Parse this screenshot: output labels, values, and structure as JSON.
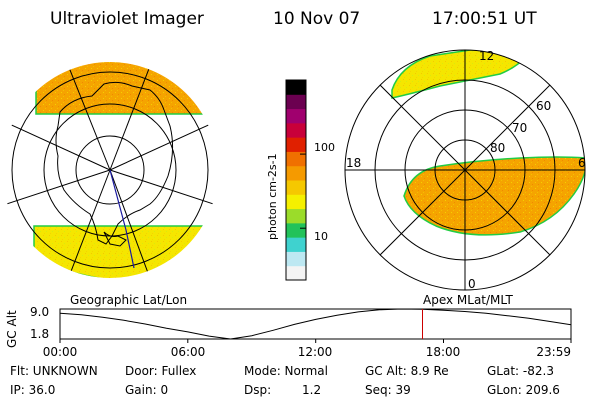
{
  "header": {
    "instrument": "Ultraviolet Imager",
    "date": "10 Nov 07",
    "time": "17:00:51 UT"
  },
  "panels": {
    "left_label": "Geographic Lat/Lon",
    "right_label": "Apex MLat/MLT"
  },
  "colorbar": {
    "unit_label": "photon cm-2s-1",
    "scale": "log",
    "tick_labels": [
      "100",
      "10"
    ],
    "tick_values": [
      100,
      10
    ],
    "range": [
      2,
      1000
    ],
    "colors": [
      "#f4f4f4",
      "#bde8f2",
      "#3fd2cf",
      "#22c25a",
      "#9bdc2a",
      "#f5f000",
      "#f5c800",
      "#f59a00",
      "#f07000",
      "#e02000",
      "#c8003a",
      "#a0006e",
      "#6b0050",
      "#000000"
    ]
  },
  "polar_labels": {
    "mlt_12": "12",
    "mlt_18": "18",
    "mlt_6": "6",
    "mlt_0": "0",
    "lat_60": "60",
    "lat_70": "70",
    "lat_80": "80"
  },
  "timeline": {
    "ylabel": "GC Alt",
    "yticks": [
      "9.0",
      "1.8"
    ],
    "xticks": [
      "00:00",
      "06:00",
      "12:00",
      "18:00",
      "23:59"
    ],
    "marker_time": "17:00:51"
  },
  "chart_data": {
    "type": "line",
    "title": "",
    "xlabel": "",
    "ylabel": "GC Alt",
    "xlim": [
      0,
      23.983
    ],
    "ylim": [
      1.8,
      9.0
    ],
    "x": [
      0,
      1,
      2,
      3,
      4,
      5,
      6,
      7,
      8,
      9,
      10,
      11,
      12,
      13,
      14,
      15,
      16,
      17,
      18,
      19,
      20,
      21,
      22,
      23,
      23.983
    ],
    "series": [
      {
        "values": [
          8.0,
          7.6,
          7.0,
          6.3,
          5.4,
          4.4,
          3.5,
          2.5,
          1.8,
          2.6,
          3.9,
          5.3,
          6.5,
          7.5,
          8.3,
          8.8,
          9.0,
          8.95,
          8.7,
          8.4,
          8.0,
          7.4,
          6.8,
          6.0,
          5.2
        ]
      }
    ],
    "marker_x": 17.014
  },
  "footer": {
    "flt": "Flt: UNKNOWN",
    "ip": "IP: 36.0",
    "door": "Door: Fullex",
    "gain": "Gain:  0",
    "mode": "Mode: Normal",
    "dsp_label": "Dsp:",
    "dsp_value": "1.2",
    "gc_alt": "GC Alt: 8.9 Re",
    "seq": "Seq: 39",
    "glat": "GLat: -82.3",
    "glon": "GLon: 209.6"
  },
  "colors": {
    "aurora_orange": "#f5a400",
    "aurora_yellow": "#f5e600",
    "aurora_edge": "#22cc44",
    "map_outline": "#000000",
    "track": "#1a1aa0",
    "marker": "#cc0000"
  }
}
